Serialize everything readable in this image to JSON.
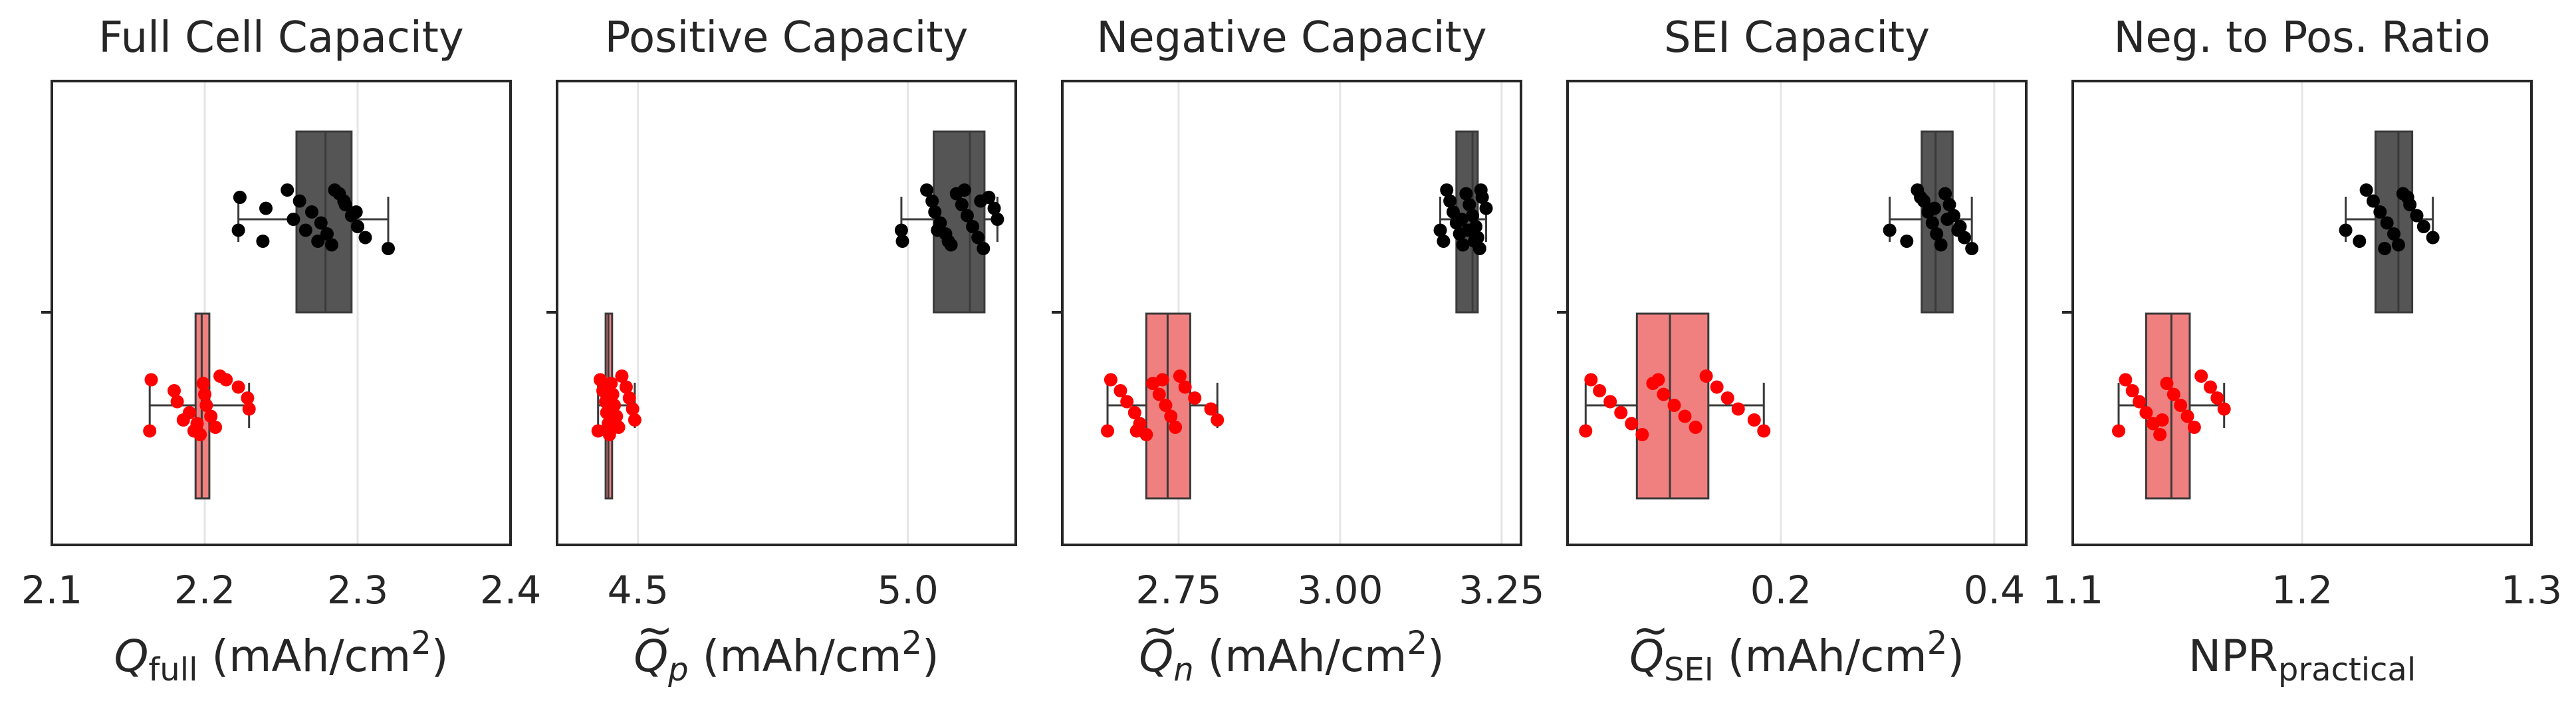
{
  "chart_data": [
    {
      "type": "box",
      "title": "Full Cell Capacity",
      "xlabel": {
        "main": "Q",
        "sub": "full",
        "suffix": " (mAh/cm",
        "sup": "2",
        "close": ")",
        "tilde": false,
        "italic": true
      },
      "xlim": [
        2.1,
        2.4
      ],
      "xticks": [
        2.1,
        2.2,
        2.3,
        2.4
      ],
      "xtick_labels": [
        "2.1",
        "2.2",
        "2.3",
        "2.4"
      ],
      "series": [
        {
          "color": "#555555",
          "q1": 2.26,
          "median": 2.279,
          "q3": 2.296,
          "whislo": 2.222,
          "whishi": 2.32,
          "points": [
            2.222,
            2.238,
            2.254,
            2.262,
            2.27,
            2.276,
            2.28,
            2.283,
            2.288,
            2.292,
            2.296,
            2.3,
            2.305,
            2.32,
            2.223,
            2.24,
            2.258,
            2.266,
            2.274,
            2.285,
            2.291,
            2.299
          ]
        },
        {
          "color": "#f08080",
          "q1": 2.194,
          "median": 2.198,
          "q3": 2.203,
          "whislo": 2.164,
          "whishi": 2.229,
          "points": [
            2.164,
            2.165,
            2.18,
            2.182,
            2.19,
            2.195,
            2.197,
            2.199,
            2.2,
            2.201,
            2.204,
            2.207,
            2.21,
            2.222,
            2.228,
            2.229,
            2.186,
            2.193,
            2.214
          ]
        }
      ]
    },
    {
      "type": "box",
      "title": "Positive Capacity",
      "xlabel": {
        "main": "Q",
        "sub": "p",
        "suffix": " (mAh/cm",
        "sup": "2",
        "close": ")",
        "tilde": true,
        "italic": true
      },
      "xlim": [
        4.35,
        5.2
      ],
      "xticks": [
        4.5,
        5.0
      ],
      "xtick_labels": [
        "4.5",
        "5.0"
      ],
      "series": [
        {
          "color": "#555555",
          "q1": 5.048,
          "median": 5.115,
          "q3": 5.142,
          "whislo": 4.988,
          "whishi": 5.166,
          "points": [
            4.988,
            4.99,
            5.035,
            5.045,
            5.05,
            5.06,
            5.07,
            5.08,
            5.09,
            5.1,
            5.11,
            5.12,
            5.13,
            5.14,
            5.15,
            5.16,
            5.166,
            5.055,
            5.075,
            5.105,
            5.135
          ]
        },
        {
          "color": "#f08080",
          "q1": 4.44,
          "median": 4.445,
          "q3": 4.452,
          "whislo": 4.426,
          "whishi": 4.494,
          "points": [
            4.426,
            4.43,
            4.435,
            4.44,
            4.442,
            4.445,
            4.447,
            4.45,
            4.453,
            4.456,
            4.46,
            4.464,
            4.47,
            4.478,
            4.484,
            4.49,
            4.494,
            4.448
          ]
        }
      ]
    },
    {
      "type": "box",
      "title": "Negative Capacity",
      "xlabel": {
        "main": "Q",
        "sub": "n",
        "suffix": " (mAh/cm",
        "sup": "2",
        "close": ")",
        "tilde": true,
        "italic": true
      },
      "xlim": [
        2.57,
        3.28
      ],
      "xticks": [
        2.75,
        3.0,
        3.25
      ],
      "xtick_labels": [
        "2.75",
        "3.00",
        "3.25"
      ],
      "series": [
        {
          "color": "#555555",
          "q1": 3.18,
          "median": 3.205,
          "q3": 3.213,
          "whislo": 3.155,
          "whishi": 3.226,
          "points": [
            3.155,
            3.16,
            3.165,
            3.17,
            3.175,
            3.18,
            3.185,
            3.19,
            3.195,
            3.2,
            3.205,
            3.21,
            3.213,
            3.216,
            3.22,
            3.226,
            3.188,
            3.198,
            3.208,
            3.218
          ]
        },
        {
          "color": "#f08080",
          "q1": 2.7,
          "median": 2.733,
          "q3": 2.768,
          "whislo": 2.64,
          "whishi": 2.81,
          "points": [
            2.64,
            2.645,
            2.66,
            2.67,
            2.682,
            2.69,
            2.7,
            2.71,
            2.72,
            2.73,
            2.738,
            2.745,
            2.752,
            2.76,
            2.775,
            2.8,
            2.81,
            2.685,
            2.725
          ]
        }
      ]
    },
    {
      "type": "box",
      "title": "SEI Capacity",
      "xlabel": {
        "main": "Q",
        "sub": "SEI",
        "suffix": " (mAh/cm",
        "sup": "2",
        "close": ")",
        "tilde": true,
        "italic": true
      },
      "xlim": [
        0.0,
        0.43
      ],
      "xticks": [
        0.2,
        0.4
      ],
      "xtick_labels": [
        "0.2",
        "0.4"
      ],
      "series": [
        {
          "color": "#555555",
          "q1": 0.332,
          "median": 0.345,
          "q3": 0.361,
          "whislo": 0.302,
          "whishi": 0.379,
          "points": [
            0.302,
            0.318,
            0.328,
            0.334,
            0.338,
            0.342,
            0.346,
            0.35,
            0.354,
            0.358,
            0.362,
            0.368,
            0.372,
            0.379,
            0.331,
            0.344,
            0.356,
            0.366
          ]
        },
        {
          "color": "#f08080",
          "q1": 0.065,
          "median": 0.096,
          "q3": 0.132,
          "whislo": 0.017,
          "whishi": 0.184,
          "points": [
            0.017,
            0.022,
            0.03,
            0.04,
            0.05,
            0.06,
            0.07,
            0.08,
            0.09,
            0.1,
            0.11,
            0.12,
            0.13,
            0.14,
            0.15,
            0.16,
            0.175,
            0.184,
            0.085
          ]
        }
      ]
    },
    {
      "type": "box",
      "title": "Neg. to Pos. Ratio",
      "xlabel": {
        "main": "NPR",
        "sub": "practical",
        "suffix": "",
        "sup": "",
        "close": "",
        "tilde": false,
        "italic": false
      },
      "xlim": [
        1.1,
        1.3
      ],
      "xticks": [
        1.1,
        1.2,
        1.3
      ],
      "xtick_labels": [
        "1.1",
        "1.2",
        "1.3"
      ],
      "series": [
        {
          "color": "#555555",
          "q1": 1.232,
          "median": 1.242,
          "q3": 1.248,
          "whislo": 1.219,
          "whishi": 1.257,
          "points": [
            1.219,
            1.225,
            1.228,
            1.231,
            1.234,
            1.237,
            1.24,
            1.242,
            1.244,
            1.247,
            1.25,
            1.253,
            1.257,
            1.236,
            1.246
          ]
        },
        {
          "color": "#f08080",
          "q1": 1.132,
          "median": 1.143,
          "q3": 1.151,
          "whislo": 1.12,
          "whishi": 1.166,
          "points": [
            1.12,
            1.123,
            1.126,
            1.129,
            1.132,
            1.135,
            1.138,
            1.141,
            1.144,
            1.147,
            1.15,
            1.153,
            1.156,
            1.16,
            1.163,
            1.166,
            1.139
          ]
        }
      ]
    }
  ]
}
